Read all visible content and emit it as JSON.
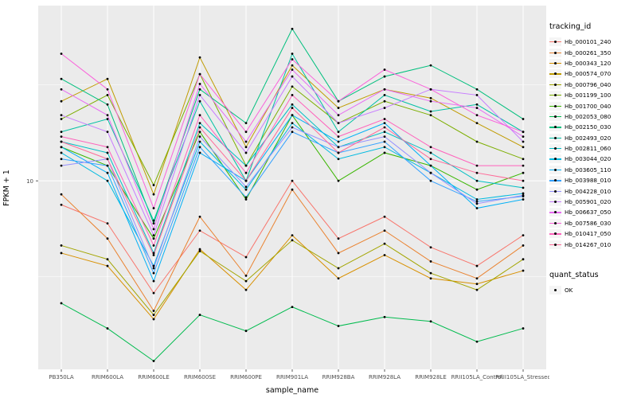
{
  "chart_data": {
    "type": "line",
    "title": "",
    "xlabel": "sample_name",
    "ylabel": "FPKM + 1",
    "y_scale": "log10",
    "ylim": [
      1.04,
      82
    ],
    "y_major_ticks": [
      10
    ],
    "y_tick_labels": [
      "10"
    ],
    "y_minor_gridlines": [
      3.162,
      31.62
    ],
    "grid": true,
    "panel_bg": "#EBEBEB",
    "grid_color": "#FFFFFF",
    "point_color": "#000000",
    "legend_position": "right",
    "categories": [
      "PB350LA",
      "RRIM600LA",
      "RRIM600LE",
      "RRIM600SE",
      "RRIM600PE",
      "RRIM901LA",
      "RRIM928BA",
      "RRIM928LA",
      "RRIM928LE",
      "RRII105LA_Control",
      "RRII105LA_Stressed"
    ],
    "series": [
      {
        "name": "Hb_000101_240",
        "color": "#F8766D",
        "values": [
          7.5,
          6.0,
          2.6,
          5.5,
          4.0,
          10.0,
          5.0,
          6.5,
          4.5,
          3.6,
          5.2
        ]
      },
      {
        "name": "Hb_000261_350",
        "color": "#EA8331",
        "values": [
          8.5,
          5.0,
          2.1,
          6.5,
          3.2,
          9.0,
          4.2,
          5.5,
          3.8,
          3.1,
          4.6
        ]
      },
      {
        "name": "Hb_000343_120",
        "color": "#D89000",
        "values": [
          4.2,
          3.6,
          1.9,
          4.4,
          2.7,
          5.2,
          3.1,
          4.1,
          3.1,
          2.9,
          3.4
        ]
      },
      {
        "name": "Hb_000574_070",
        "color": "#C09B00",
        "values": [
          26,
          34,
          8.5,
          44,
          15,
          40,
          24,
          30,
          27,
          20,
          15
        ]
      },
      {
        "name": "Hb_000796_040",
        "color": "#A3A500",
        "values": [
          4.6,
          3.9,
          2.0,
          4.3,
          3.0,
          4.9,
          3.5,
          4.7,
          3.3,
          2.7,
          3.9
        ]
      },
      {
        "name": "Hb_001199_100",
        "color": "#7CAE00",
        "values": [
          21,
          28,
          9.5,
          36,
          12,
          31,
          20,
          26,
          22,
          16,
          13
        ]
      },
      {
        "name": "Hb_001700_040",
        "color": "#39B600",
        "values": [
          15,
          12,
          5.0,
          18,
          8.0,
          22,
          10,
          14,
          12,
          9.0,
          11
        ]
      },
      {
        "name": "Hb_002053_080",
        "color": "#00BB4E",
        "values": [
          2.3,
          1.7,
          1.15,
          2.0,
          1.65,
          2.2,
          1.75,
          1.95,
          1.85,
          1.45,
          1.7
        ]
      },
      {
        "name": "Hb_002150_030",
        "color": "#00BF7D",
        "values": [
          34,
          25,
          6.0,
          30,
          20,
          62,
          26,
          35,
          40,
          30,
          21
        ]
      },
      {
        "name": "Hb_002493_020",
        "color": "#00C1A3",
        "values": [
          18,
          21,
          6.2,
          26,
          10,
          46,
          18,
          28,
          23,
          25,
          18
        ]
      },
      {
        "name": "Hb_002811_060",
        "color": "#00BFC4",
        "values": [
          16,
          14,
          4.2,
          20,
          12,
          25,
          15,
          18,
          14,
          10,
          9.2
        ]
      },
      {
        "name": "Hb_003044_020",
        "color": "#00BAE0",
        "values": [
          14,
          10,
          3.6,
          16,
          9.0,
          20,
          13,
          15,
          11,
          8.0,
          8.6
        ]
      },
      {
        "name": "Hb_003605_110",
        "color": "#00B0F6",
        "values": [
          15,
          11,
          3.0,
          14,
          10,
          22,
          16,
          20,
          12,
          7.2,
          8.0
        ]
      },
      {
        "name": "Hb_003988_010",
        "color": "#35A2FF",
        "values": [
          13,
          12,
          3.3,
          15,
          8.2,
          18,
          14,
          16,
          10,
          7.8,
          8.3
        ]
      },
      {
        "name": "Hb_004228_010",
        "color": "#9590FF",
        "values": [
          12,
          13,
          3.5,
          17,
          9.3,
          19,
          15,
          17,
          11,
          7.6,
          8.4
        ]
      },
      {
        "name": "Hb_005901_020",
        "color": "#C77CFF",
        "values": [
          22,
          18,
          5.2,
          28,
          14,
          35,
          20,
          24,
          30,
          28,
          16
        ]
      },
      {
        "name": "Hb_006637_050",
        "color": "#E76BF3",
        "values": [
          30,
          22,
          5.6,
          32,
          16,
          38,
          22,
          30,
          26,
          24,
          17
        ]
      },
      {
        "name": "Hb_007586_030",
        "color": "#FA62DB",
        "values": [
          46,
          30,
          7.2,
          36,
          18,
          43,
          26,
          38,
          30,
          22,
          18
        ]
      },
      {
        "name": "Hb_010417_050",
        "color": "#FF62BC",
        "values": [
          17,
          15,
          4.6,
          22,
          11,
          28,
          17,
          21,
          15,
          12,
          12
        ]
      },
      {
        "name": "Hb_014267_010",
        "color": "#FF6A98",
        "values": [
          16,
          13,
          4.1,
          19,
          10,
          24,
          14,
          19,
          13,
          11,
          10
        ]
      }
    ],
    "legend": {
      "tracking_title": "tracking_id",
      "quant_title": "quant_status",
      "quant_items": [
        {
          "label": "OK"
        }
      ]
    }
  }
}
